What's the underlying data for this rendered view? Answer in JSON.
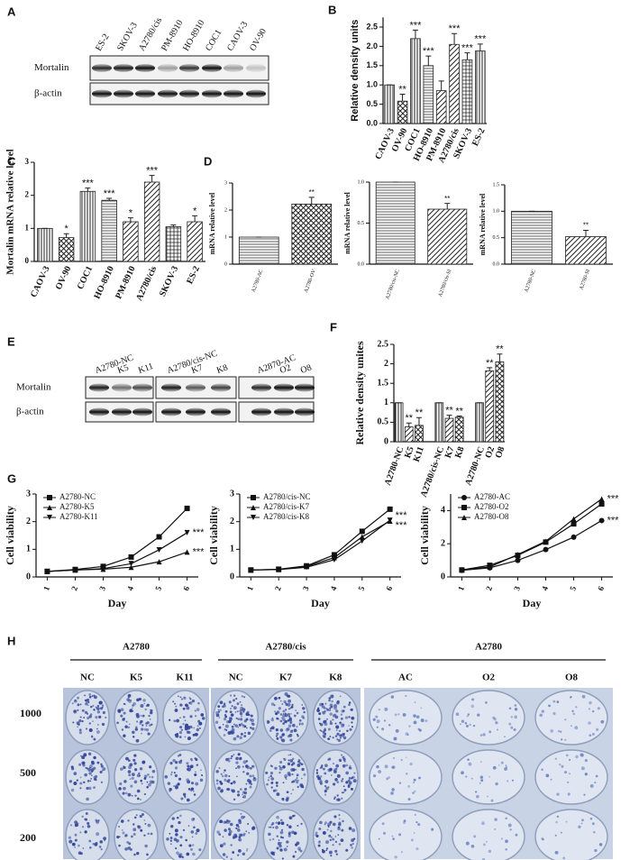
{
  "panel_labels": [
    "A",
    "B",
    "C",
    "D",
    "E",
    "F",
    "G",
    "H"
  ],
  "blot_a": {
    "lanes": [
      "ES-2",
      "SKOV-3",
      "A2780/cis",
      "PM-8910",
      "HO-8910",
      "COC1",
      "CAOV-3",
      "OV-90"
    ],
    "rows": [
      "Mortalin",
      "β-actin"
    ]
  },
  "blot_e": {
    "lanes": [
      "A2780-NC",
      "K5",
      "K11",
      "A2780/cis-NC",
      "K7",
      "K8",
      "A2870-AC",
      "O2",
      "O8"
    ],
    "rows": [
      "Mortalin",
      "β-actin"
    ]
  },
  "colony": {
    "groups": [
      "A2780",
      "A2780/cis",
      "A2780"
    ],
    "columns": [
      [
        "NC",
        "K5",
        "K11"
      ],
      [
        "NC",
        "K7",
        "K8"
      ],
      [
        "AC",
        "O2",
        "O8"
      ]
    ],
    "rows": [
      "1000",
      "500",
      "200"
    ]
  },
  "chart_data": [
    {
      "type": "bar",
      "ylabel": "Relative density units",
      "color": "#222222",
      "categories": [
        "CAOV-3",
        "OV-90",
        "COC1",
        "HO-8910",
        "PM-8910",
        "A2780/cis",
        "SKOV-3",
        "ES-2"
      ],
      "values": [
        1.0,
        0.58,
        2.2,
        1.5,
        0.85,
        2.05,
        1.65,
        1.88
      ],
      "errors": [
        0,
        0.18,
        0.22,
        0.25,
        0.25,
        0.28,
        0.18,
        0.18
      ],
      "significance": [
        null,
        "**",
        "***",
        "***",
        null,
        "***",
        "***",
        "***"
      ],
      "ylim": [
        0,
        2.75
      ],
      "yticks": [
        {
          "value": 0,
          "label": "0.0"
        },
        {
          "value": 0.5,
          "label": "0.5"
        },
        {
          "value": 1,
          "label": "1.0"
        },
        {
          "value": 1.5,
          "label": "1.5"
        },
        {
          "value": 2,
          "label": "2.0"
        },
        {
          "value": 2.5,
          "label": "2.5"
        }
      ]
    },
    {
      "type": "bar",
      "ylabel": "Mortalin mRNA  relative level",
      "color": "#222222",
      "categories": [
        "CAOV-3",
        "OV-90",
        "COC1",
        "HO-8910",
        "PM-8910",
        "A2780/cis",
        "SKOV-3",
        "ES-2"
      ],
      "values": [
        1.0,
        0.72,
        2.12,
        1.85,
        1.2,
        2.4,
        1.05,
        1.2
      ],
      "errors": [
        0,
        0.12,
        0.1,
        0.06,
        0.12,
        0.2,
        0.05,
        0.18
      ],
      "significance": [
        null,
        "*",
        "***",
        "***",
        "*",
        "***",
        null,
        "*"
      ],
      "ylim": [
        0,
        3
      ],
      "yticks": [
        0,
        1,
        2,
        3
      ]
    },
    {
      "type": "bar",
      "ylabel": "mRNA relative level",
      "color": "#222222",
      "categories": [
        "A2780-AC",
        "A2780-OV"
      ],
      "values": [
        1.0,
        2.22
      ],
      "errors": [
        0,
        0.25
      ],
      "significance": [
        null,
        "**"
      ],
      "ylim": [
        0,
        3
      ],
      "yticks": [
        0,
        1,
        2,
        3
      ]
    },
    {
      "type": "bar",
      "ylabel": "mRNA relative level",
      "color": "#222222",
      "categories": [
        "A2780/cis-NC",
        "A2780/cis-SI"
      ],
      "values": [
        1.0,
        0.67
      ],
      "errors": [
        0,
        0.07
      ],
      "significance": [
        null,
        "**"
      ],
      "ylim": [
        0,
        1
      ],
      "yticks": [
        {
          "value": 0,
          "label": "0.0"
        },
        {
          "value": 0.5,
          "label": "0.5"
        },
        {
          "value": 1,
          "label": "1.0"
        }
      ]
    },
    {
      "type": "bar",
      "ylabel": "mRNA relative level",
      "color": "#222222",
      "categories": [
        "A2780-NC",
        "A2780-SI"
      ],
      "values": [
        1.0,
        0.52
      ],
      "errors": [
        0,
        0.12
      ],
      "significance": [
        null,
        "**"
      ],
      "ylim": [
        0,
        1.5
      ],
      "yticks": [
        {
          "value": 0,
          "label": "0.0"
        },
        {
          "value": 0.5,
          "label": "0.5"
        },
        {
          "value": 1,
          "label": "1.0"
        },
        {
          "value": 1.5,
          "label": "1.5"
        }
      ]
    },
    {
      "type": "bar",
      "ylabel": "Relative density unites",
      "color": "#222222",
      "categories": [
        "A2780-NC",
        "K5",
        "K11",
        null,
        "A2780/cis-NC",
        "K7",
        "K8",
        null,
        "A2780-NC",
        "O2",
        "O8"
      ],
      "values": [
        1,
        0.38,
        0.42,
        null,
        1,
        0.6,
        0.63,
        null,
        1,
        1.82,
        2.05
      ],
      "errors": [
        0,
        0.1,
        0.2,
        null,
        0,
        0.08,
        0.03,
        null,
        0,
        0.08,
        0.2
      ],
      "significance": [
        null,
        "**",
        "**",
        null,
        null,
        "**",
        "**",
        null,
        null,
        "**",
        "**"
      ],
      "ylim": [
        0,
        2.5
      ],
      "yticks": [
        0,
        0.5,
        1,
        1.5,
        2,
        2.5
      ]
    },
    {
      "type": "line",
      "xlabel": "Day",
      "ylabel": "Cell viability",
      "color": "#111111",
      "x": [
        1,
        2,
        3,
        4,
        5,
        6
      ],
      "xlim": [
        0.6,
        6.4
      ],
      "xticks": [
        1,
        2,
        3,
        4,
        5,
        6
      ],
      "ylim": [
        0,
        3
      ],
      "yticks": [
        0,
        1,
        2,
        3
      ],
      "series": [
        {
          "name": "A2780-NC",
          "marker": "square",
          "values": [
            0.2,
            0.27,
            0.38,
            0.72,
            1.45,
            2.48
          ]
        },
        {
          "name": "A2780-K5",
          "marker": "triangle",
          "values": [
            0.2,
            0.25,
            0.28,
            0.35,
            0.55,
            0.9
          ]
        },
        {
          "name": "A2780-K11",
          "marker": "triangle-down",
          "values": [
            0.2,
            0.25,
            0.3,
            0.48,
            0.98,
            1.6
          ]
        }
      ],
      "annotations": [
        "***",
        "***"
      ]
    },
    {
      "type": "line",
      "xlabel": "Day",
      "ylabel": "Cell viability",
      "color": "#111111",
      "x": [
        1,
        2,
        3,
        4,
        5,
        6
      ],
      "xlim": [
        0.6,
        6.4
      ],
      "xticks": [
        1,
        2,
        3,
        4,
        5,
        6
      ],
      "ylim": [
        0,
        3
      ],
      "yticks": [
        0,
        1,
        2,
        3
      ],
      "series": [
        {
          "name": "A2780/cis-NC",
          "marker": "square",
          "values": [
            0.25,
            0.28,
            0.4,
            0.8,
            1.65,
            2.45
          ]
        },
        {
          "name": "A2780/cis-K7",
          "marker": "triangle",
          "values": [
            0.25,
            0.27,
            0.38,
            0.7,
            1.45,
            2.02
          ]
        },
        {
          "name": "A2780/cis-K8",
          "marker": "triangle-down",
          "values": [
            0.25,
            0.27,
            0.35,
            0.62,
            1.3,
            2.05
          ]
        }
      ],
      "annotations": [
        "***",
        "***"
      ]
    },
    {
      "type": "line",
      "xlabel": "Day",
      "ylabel": "Cell viability",
      "color": "#111111",
      "x": [
        1,
        2,
        3,
        4,
        5,
        6
      ],
      "xlim": [
        0.6,
        6.4
      ],
      "xticks": [
        1,
        2,
        3,
        4,
        5,
        6
      ],
      "ylim": [
        0,
        5
      ],
      "yticks": [
        0,
        2,
        4
      ],
      "series": [
        {
          "name": "A2780-AC",
          "marker": "circle",
          "values": [
            0.4,
            0.55,
            1.0,
            1.65,
            2.4,
            3.4
          ]
        },
        {
          "name": "A2780-O2",
          "marker": "square",
          "values": [
            0.42,
            0.7,
            1.3,
            2.1,
            3.2,
            4.4
          ]
        },
        {
          "name": "A2780-O8",
          "marker": "triangle",
          "values": [
            0.42,
            0.6,
            1.35,
            2.15,
            3.5,
            4.7
          ]
        }
      ],
      "annotations": [
        "***",
        "***"
      ]
    }
  ]
}
